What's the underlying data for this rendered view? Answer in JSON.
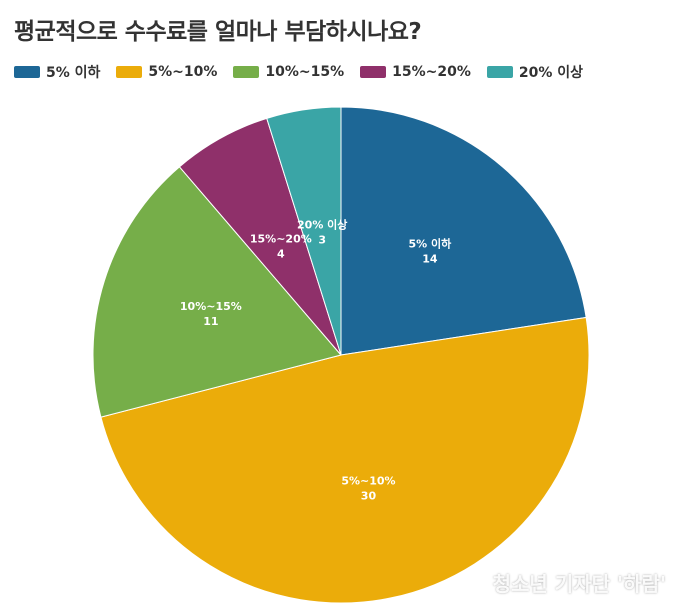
{
  "title": "평균적으로 수수료를 얼마나 부담하시나요?",
  "watermark": "청소년 기자단 '하람'",
  "watermark_icon": "bicycle-icon",
  "chart_data": {
    "type": "pie",
    "title": "평균적으로 수수료를 얼마나 부담하시나요?",
    "legend_position": "top-left",
    "slices": [
      {
        "label": "5% 이하",
        "value": 14,
        "color": "#1D6796"
      },
      {
        "label": "5%~10%",
        "value": 30,
        "color": "#EBAC0A"
      },
      {
        "label": "10%~15%",
        "value": 11,
        "color": "#76AE49"
      },
      {
        "label": "15%~20%",
        "value": 4,
        "color": "#8F306A"
      },
      {
        "label": "20% 이상",
        "value": 3,
        "color": "#3AA5A6"
      }
    ]
  }
}
